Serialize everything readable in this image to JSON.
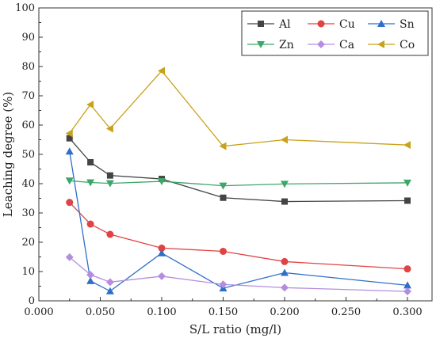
{
  "chart_data": {
    "type": "line",
    "x": [
      0.025,
      0.042,
      0.058,
      0.1,
      0.15,
      0.2,
      0.3
    ],
    "series": [
      {
        "name": "Al",
        "color": "#444444",
        "marker": "square",
        "values": [
          55.5,
          47.3,
          42.8,
          41.6,
          35.2,
          33.9,
          34.2
        ]
      },
      {
        "name": "Cu",
        "color": "#e04343",
        "marker": "circle",
        "values": [
          33.6,
          26.2,
          22.7,
          18.0,
          16.9,
          13.4,
          10.9
        ]
      },
      {
        "name": "Sn",
        "color": "#2e6fc9",
        "marker": "triangle-up",
        "values": [
          51.0,
          6.8,
          3.3,
          16.3,
          4.3,
          9.6,
          5.3
        ]
      },
      {
        "name": "Zn",
        "color": "#3ea66a",
        "marker": "triangle-down",
        "values": [
          41.0,
          40.4,
          40.1,
          40.8,
          39.3,
          39.9,
          40.3
        ]
      },
      {
        "name": "Ca",
        "color": "#b58de0",
        "marker": "diamond",
        "values": [
          14.9,
          8.9,
          6.4,
          8.4,
          5.6,
          4.5,
          3.2
        ]
      },
      {
        "name": "Co",
        "color": "#c9a21b",
        "marker": "triangle-left",
        "values": [
          57.2,
          67.0,
          58.8,
          78.5,
          52.8,
          55.0,
          53.2
        ]
      }
    ],
    "xlabel": "S/L ratio (mg/l)",
    "ylabel": "Leaching degree (%)",
    "xlim": [
      0.0,
      0.32
    ],
    "ylim": [
      0,
      100
    ],
    "xticks": [
      "0.000",
      "0.050",
      "0.100",
      "0.150",
      "0.200",
      "0.250",
      "0.300"
    ],
    "yticks": [
      "0",
      "10",
      "20",
      "30",
      "40",
      "50",
      "60",
      "70",
      "80",
      "90",
      "100"
    ],
    "grid": false,
    "legend_position": "top-right"
  }
}
